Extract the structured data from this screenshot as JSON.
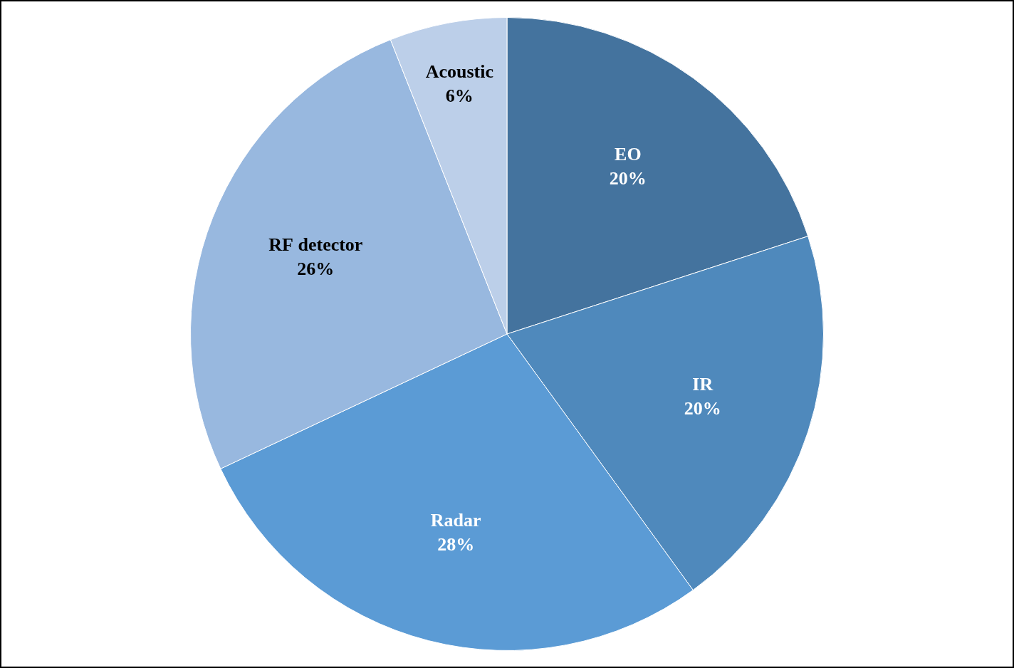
{
  "chart_data": {
    "type": "pie",
    "categories": [
      "EO",
      "IR",
      "Radar",
      "RF detector",
      "Acoustic"
    ],
    "values": [
      20,
      20,
      28,
      26,
      6
    ],
    "value_labels": [
      "20%",
      "20%",
      "28%",
      "26%",
      "6%"
    ],
    "colors": [
      "#44739e",
      "#4f89bc",
      "#5b9bd5",
      "#98b8df",
      "#bccfe9"
    ],
    "data_labels": true
  }
}
